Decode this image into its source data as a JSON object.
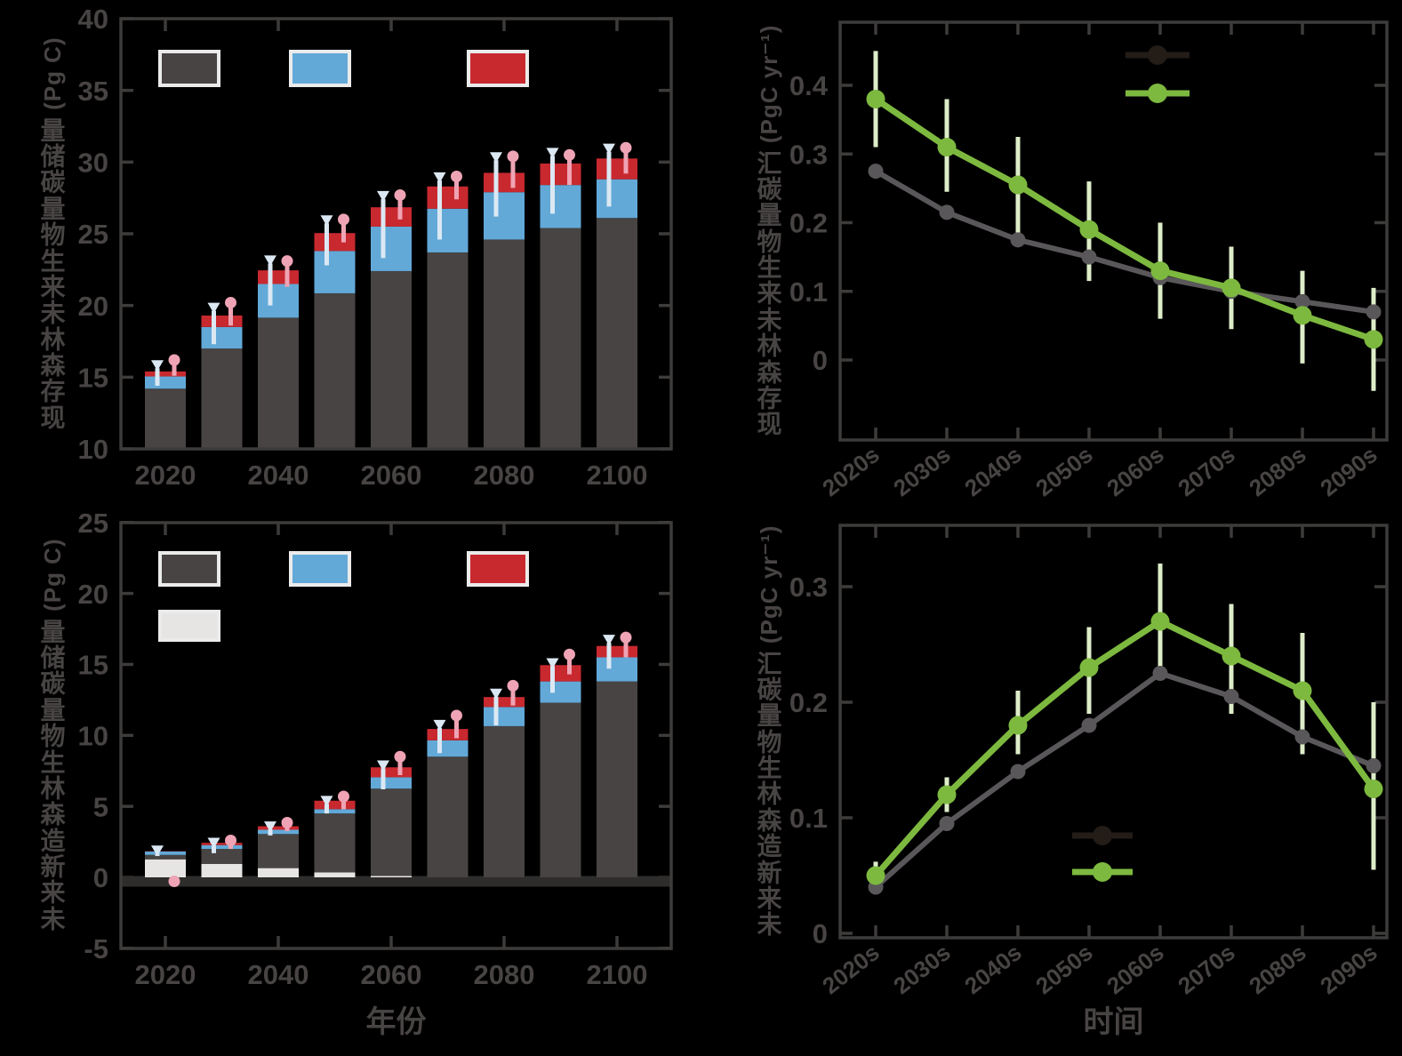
{
  "figure": {
    "background": "#000000"
  },
  "colors": {
    "axis": "#3e3c3b",
    "tick_text": "#474443",
    "bar_dark": "#474443",
    "bar_blue": "#62a9d8",
    "bar_red": "#c8292f",
    "bar_light": "#e6e5e3",
    "whisker_white": "#dbe8f3",
    "whisker_pink": "#efa4b5",
    "line_gray": "#5a575a",
    "line_green": "#7db93f",
    "error_green": "#ddedc9",
    "legend_dark": "#231c17",
    "legend_border": "#ebebeb",
    "zero_band": "#2e2d2c"
  },
  "chart_data": [
    {
      "key": "existing-forest-biomass-stock",
      "type": "bar",
      "title": "",
      "ylabel": "现存森林未来生物量碳储量 (Pg C)",
      "xlabel": "",
      "ylim": [
        10,
        40
      ],
      "yticks": [
        10,
        15,
        20,
        25,
        30,
        35,
        40
      ],
      "xticks": [
        2020,
        2040,
        2060,
        2080,
        2100
      ],
      "categories": [
        2020,
        2030,
        2040,
        2050,
        2060,
        2070,
        2080,
        2090,
        2100
      ],
      "bar_base": 10,
      "stack_order": [
        "bar_dark",
        "bar_blue",
        "bar_red"
      ],
      "series": [
        {
          "name": "dark",
          "color": "bar_dark",
          "tops": [
            14.2,
            17.0,
            19.15,
            20.85,
            22.4,
            23.7,
            24.6,
            25.4,
            26.1
          ]
        },
        {
          "name": "blue",
          "color": "bar_blue",
          "tops": [
            15.05,
            18.5,
            21.5,
            23.8,
            25.5,
            26.75,
            27.9,
            28.4,
            28.8
          ]
        },
        {
          "name": "red",
          "color": "bar_red",
          "tops": [
            15.4,
            19.3,
            22.45,
            25.05,
            26.85,
            28.3,
            29.25,
            29.9,
            30.25
          ]
        }
      ],
      "whiskers": {
        "white": [
          [
            14.4,
            16.0
          ],
          [
            17.3,
            20.0
          ],
          [
            20.0,
            23.3
          ],
          [
            22.8,
            26.1
          ],
          [
            23.3,
            27.8
          ],
          [
            24.6,
            29.1
          ],
          [
            26.2,
            30.5
          ],
          [
            26.4,
            30.8
          ],
          [
            26.9,
            31.1
          ]
        ],
        "pink": [
          [
            15.1,
            16.2
          ],
          [
            18.6,
            20.2
          ],
          [
            21.3,
            23.1
          ],
          [
            24.4,
            26.0
          ],
          [
            26.0,
            27.7
          ],
          [
            27.4,
            29.0
          ],
          [
            28.2,
            30.4
          ],
          [
            28.4,
            30.5
          ],
          [
            29.2,
            31.0
          ]
        ]
      },
      "legend": {
        "swatches": [
          "bar_dark",
          "bar_blue",
          "bar_red"
        ]
      }
    },
    {
      "key": "existing-forest-biomass-sink",
      "type": "line",
      "title": "",
      "ylabel": "现存森林未来生物量碳汇 (PgC yr⁻¹)",
      "xlabel": "",
      "ylim": [
        -0.117,
        0.492
      ],
      "yticks": [
        0,
        0.1,
        0.2,
        0.3,
        0.4
      ],
      "categories": [
        "2020s",
        "2030s",
        "2040s",
        "2050s",
        "2060s",
        "2070s",
        "2080s",
        "2090s"
      ],
      "series": [
        {
          "name": "gray",
          "color": "line_gray",
          "values": [
            0.275,
            0.215,
            0.175,
            0.15,
            0.12,
            0.1,
            0.085,
            0.07
          ]
        },
        {
          "name": "green",
          "color": "line_green",
          "values": [
            0.38,
            0.31,
            0.255,
            0.19,
            0.13,
            0.105,
            0.065,
            0.03
          ],
          "error": [
            [
              0.31,
              0.45
            ],
            [
              0.245,
              0.38
            ],
            [
              0.185,
              0.325
            ],
            [
              0.115,
              0.26
            ],
            [
              0.06,
              0.2
            ],
            [
              0.045,
              0.165
            ],
            [
              -0.005,
              0.13
            ],
            [
              -0.045,
              0.105
            ]
          ]
        }
      ],
      "legend": {
        "entries": [
          "legend_dark",
          "line_green"
        ],
        "position": "top-right"
      }
    },
    {
      "key": "new-afforestation-biomass-stock",
      "type": "bar",
      "title": "",
      "ylabel": "未来新造森林生物量碳储量 (Pg C)",
      "xlabel": "年份",
      "ylim": [
        -5,
        25
      ],
      "yticks": [
        -5,
        0,
        5,
        10,
        15,
        20,
        25
      ],
      "xticks": [
        2020,
        2040,
        2060,
        2080,
        2100
      ],
      "categories": [
        2020,
        2030,
        2040,
        2050,
        2060,
        2070,
        2080,
        2090,
        2100
      ],
      "bar_base": 0,
      "zero_band": true,
      "stack_order": [
        "bar_light",
        "bar_dark",
        "bar_blue",
        "bar_red"
      ],
      "series": [
        {
          "name": "light",
          "color": "bar_light",
          "tops": [
            1.27,
            0.95,
            0.65,
            0.35,
            0.1,
            0,
            0,
            0,
            0
          ]
        },
        {
          "name": "dark",
          "color": "bar_dark",
          "tops": [
            1.58,
            2.0,
            3.05,
            4.5,
            6.25,
            8.5,
            10.65,
            12.3,
            13.8
          ]
        },
        {
          "name": "blue",
          "color": "bar_blue",
          "tops": [
            1.82,
            2.27,
            3.35,
            4.8,
            7.05,
            9.65,
            12.0,
            13.8,
            15.5
          ]
        },
        {
          "name": "red",
          "color": "bar_red",
          "tops": [
            1.84,
            2.43,
            3.6,
            5.4,
            7.75,
            10.45,
            12.7,
            14.95,
            16.3
          ]
        }
      ],
      "whiskers": {
        "white": [
          [
            1.5,
            2.05
          ],
          [
            1.7,
            2.6
          ],
          [
            2.95,
            3.75
          ],
          [
            4.5,
            5.55
          ],
          [
            6.2,
            8.05
          ],
          [
            8.75,
            10.9
          ],
          [
            10.7,
            13.1
          ],
          [
            13.0,
            15.25
          ],
          [
            14.7,
            16.9
          ]
        ],
        "pink": [
          [
            -0.28,
            -0.28
          ],
          [
            2.0,
            2.6
          ],
          [
            3.25,
            3.85
          ],
          [
            4.8,
            5.7
          ],
          [
            7.2,
            8.5
          ],
          [
            9.8,
            11.4
          ],
          [
            12.1,
            13.5
          ],
          [
            14.3,
            15.7
          ],
          [
            15.5,
            16.9
          ]
        ]
      },
      "legend": {
        "swatches": [
          "bar_dark",
          "bar_blue",
          "bar_red",
          "bar_light"
        ]
      }
    },
    {
      "key": "new-afforestation-biomass-sink",
      "type": "line",
      "title": "",
      "ylabel": "未来新造森林生物量碳汇 (PgC yr⁻¹)",
      "xlabel": "时间",
      "ylim": [
        -0.004,
        0.353
      ],
      "yticks": [
        0,
        0.1,
        0.2,
        0.3
      ],
      "categories": [
        "2020s",
        "2030s",
        "2040s",
        "2050s",
        "2060s",
        "2070s",
        "2080s",
        "2090s"
      ],
      "series": [
        {
          "name": "gray",
          "color": "line_gray",
          "values": [
            0.04,
            0.095,
            0.14,
            0.18,
            0.225,
            0.205,
            0.17,
            0.145
          ]
        },
        {
          "name": "green",
          "color": "line_green",
          "values": [
            0.05,
            0.12,
            0.18,
            0.23,
            0.27,
            0.24,
            0.21,
            0.125
          ],
          "error": [
            [
              0.042,
              0.062
            ],
            [
              0.105,
              0.135
            ],
            [
              0.155,
              0.21
            ],
            [
              0.19,
              0.265
            ],
            [
              0.22,
              0.32
            ],
            [
              0.19,
              0.285
            ],
            [
              0.155,
              0.26
            ],
            [
              0.055,
              0.2
            ]
          ]
        }
      ],
      "legend": {
        "entries": [
          "legend_dark",
          "line_green"
        ],
        "position": "center-bottom"
      }
    }
  ]
}
